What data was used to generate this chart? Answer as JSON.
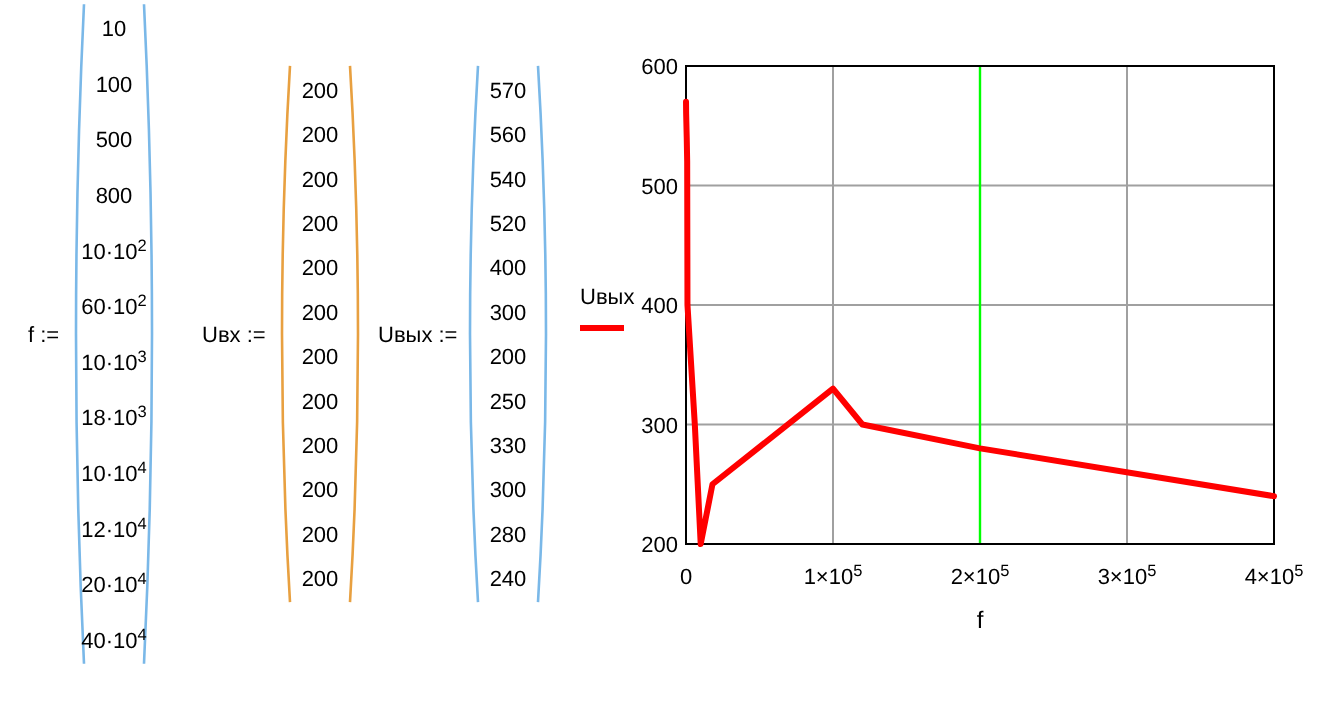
{
  "chart_data": [
    {
      "type": "other",
      "title": "f :=",
      "annotations": [
        "10",
        "100",
        "500",
        "800",
        "10·10$^{2}$",
        "60·10$^{2}$",
        "10·10$^{3}$",
        "18·10$^{3}$",
        "10·10$^{4}$",
        "12·10$^{4}$",
        "20·10$^{4}$",
        "40·10$^{4}$"
      ]
    },
    {
      "type": "other",
      "title": "Uвх :=",
      "annotations": [
        "200",
        "200",
        "200",
        "200",
        "200",
        "200",
        "200",
        "200",
        "200",
        "200",
        "200",
        "200"
      ]
    },
    {
      "type": "other",
      "title": "Uвых :=",
      "annotations": [
        "570",
        "560",
        "540",
        "520",
        "400",
        "300",
        "200",
        "250",
        "330",
        "300",
        "280",
        "240"
      ]
    },
    {
      "type": "line",
      "xlabel": "f",
      "x": [
        10,
        100,
        500,
        800,
        1000,
        6000,
        10000,
        18000,
        100000,
        120000,
        200000,
        400000
      ],
      "series": [
        {
          "name": "Uвых",
          "color": "#ff0000",
          "values": [
            570,
            560,
            540,
            520,
            400,
            300,
            200,
            250,
            330,
            300,
            280,
            240
          ]
        }
      ],
      "xlim": [
        0,
        400000
      ],
      "xticks": [
        0,
        {
          "value": 100000,
          "label": "1×10$^{5}$"
        },
        {
          "value": 200000,
          "label": "2×10$^{5}$"
        },
        {
          "value": 300000,
          "label": "3×10$^{5}$"
        },
        {
          "value": 400000,
          "label": "4×10$^{5}$"
        }
      ],
      "ylim": [
        200,
        600
      ],
      "yticks": [
        200,
        300,
        400,
        500,
        600
      ],
      "grid": true,
      "legend": "left",
      "ref_lines": [
        {
          "axis": "x",
          "value": 200000,
          "color": "#00ff00"
        }
      ]
    }
  ]
}
